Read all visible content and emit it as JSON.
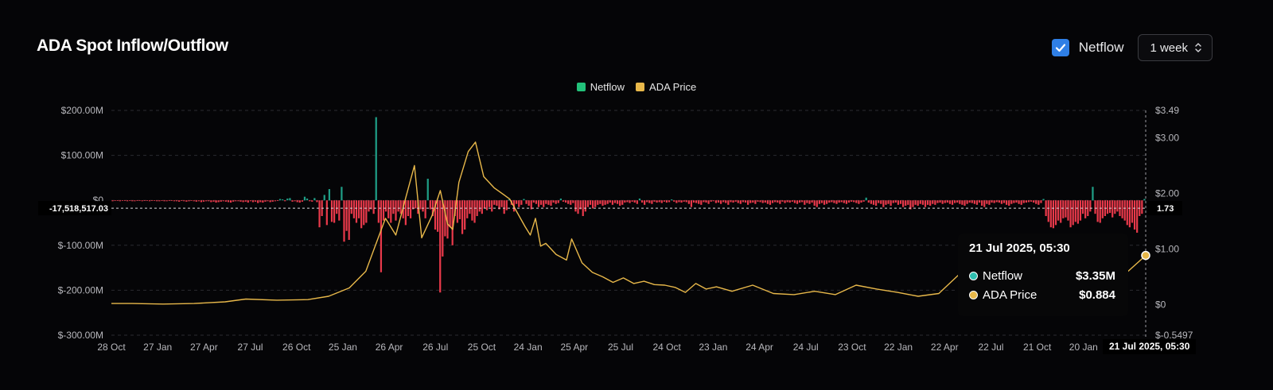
{
  "header": {
    "title": "ADA Spot Inflow/Outflow",
    "netflow_toggle_label": "Netflow",
    "netflow_checked": true,
    "period_select_value": "1 week"
  },
  "legend": [
    {
      "label": "Netflow",
      "color": "#22c27a"
    },
    {
      "label": "ADA Price",
      "color": "#e8b84a"
    }
  ],
  "tooltip": {
    "date": "21 Jul 2025, 05:30",
    "rows": [
      {
        "name": "Netflow",
        "value": "$3.35M",
        "dot_color": "#2fbfb0"
      },
      {
        "name": "ADA Price",
        "value": "$0.884",
        "dot_color": "#e8b84a"
      }
    ]
  },
  "cursor": {
    "y_left_label": "-17,518,517.03",
    "y_right_label": "1.73",
    "x_label": "21 Jul 2025, 05:30"
  },
  "colors": {
    "positive": "#1f9e86",
    "negative": "#e8394a",
    "price": "#e8b84a",
    "grid": "#2a2b30",
    "axis_text": "#b8b8bd"
  },
  "chart_data": {
    "type": "bar",
    "title": "ADA Spot Inflow/Outflow",
    "left_axis": {
      "ticks": [
        "$200.00M",
        "$100.00M",
        "$0",
        "$-100.00M",
        "$-200.00M",
        "$-300.00M"
      ],
      "tick_values": [
        200,
        100,
        0,
        -100,
        -200,
        -300
      ],
      "ylim": [
        -300,
        200
      ],
      "unit": "M USD"
    },
    "right_axis": {
      "ticks": [
        "$3.49",
        "$3.00",
        "$2.00",
        "$1.00",
        "$0",
        "$-0.5497"
      ],
      "tick_values": [
        3.49,
        3.0,
        2.0,
        1.0,
        0,
        -0.5497
      ],
      "ylim": [
        -0.5497,
        3.49
      ]
    },
    "x_ticks": [
      "28 Oct",
      "27 Jan",
      "27 Apr",
      "27 Jul",
      "26 Oct",
      "25 Jan",
      "26 Apr",
      "26 Jul",
      "25 Oct",
      "24 Jan",
      "25 Apr",
      "25 Jul",
      "24 Oct",
      "23 Jan",
      "24 Apr",
      "24 Jul",
      "23 Oct",
      "22 Jan",
      "22 Apr",
      "22 Jul",
      "21 Oct",
      "20 Jan",
      "21"
    ],
    "grid": true,
    "series": [
      {
        "name": "Netflow",
        "type": "bar",
        "unit": "M USD",
        "values": [
          -2,
          -1,
          -1,
          -2,
          -1,
          -1,
          -2,
          -1,
          -2,
          -2,
          -1,
          -1,
          -2,
          -1,
          -1,
          -2,
          -1,
          -1,
          -2,
          -2,
          -1,
          -2,
          -2,
          -1,
          -1,
          -2,
          -2,
          -3,
          -1,
          -2,
          -3,
          -2,
          -1,
          -2,
          -3,
          -2,
          -4,
          -3,
          -2,
          -2,
          -4,
          -3,
          -5,
          -4,
          -3,
          -2,
          -3,
          -4,
          -5,
          -3,
          -2,
          -2,
          -3,
          -4,
          -3,
          -5,
          -2,
          -4,
          -3,
          -6,
          -4,
          -5,
          -3,
          -2,
          -4,
          -3,
          -2,
          -1,
          3,
          2,
          -2,
          4,
          5,
          -3,
          -2,
          -4,
          -5,
          -3,
          8,
          4,
          -2,
          -3,
          5,
          -4,
          -60,
          -35,
          12,
          -55,
          25,
          -48,
          -50,
          -30,
          -45,
          30,
          -92,
          -68,
          -88,
          -30,
          -40,
          -50,
          -40,
          -62,
          -55,
          -50,
          -25,
          -20,
          -30,
          185,
          -50,
          -160,
          -45,
          -25,
          -40,
          -50,
          -30,
          -45,
          -25,
          -30,
          -40,
          -55,
          -35,
          -40,
          -20,
          -18,
          -30,
          -20,
          -25,
          -40,
          48,
          -20,
          -35,
          -65,
          -70,
          -205,
          -125,
          -80,
          -85,
          -60,
          -100,
          -35,
          -50,
          -42,
          -75,
          -65,
          -40,
          -30,
          -45,
          -50,
          -35,
          -25,
          -30,
          -18,
          -22,
          -15,
          -25,
          -10,
          -12,
          -20,
          -15,
          -30,
          -22,
          2,
          -10,
          -25,
          -8,
          -15,
          -10,
          3,
          -8,
          -12,
          -20,
          -5,
          -8,
          -15,
          -10,
          -15,
          -8,
          -10,
          -12,
          -5,
          -8,
          -6,
          4,
          -3,
          -5,
          -8,
          -10,
          -6,
          -25,
          -30,
          -20,
          -35,
          -25,
          -15,
          -10,
          -18,
          -15,
          -10,
          -8,
          -12,
          -10,
          -8,
          -5,
          -10,
          -6,
          -8,
          -12,
          -10,
          -5,
          -4,
          -6,
          -3,
          -5,
          -8,
          4,
          -5,
          -10,
          -4,
          -6,
          -8,
          -3,
          -5,
          -4,
          -6,
          -3,
          -5,
          -4,
          2,
          -3,
          -6,
          -4,
          -5,
          -3,
          -4,
          -8,
          -15,
          -5,
          -6,
          -8,
          -10,
          -4,
          -5,
          -8,
          -3,
          -2,
          -6,
          -5,
          -8,
          -4,
          -6,
          -10,
          -4,
          -5,
          -3,
          -6,
          -8,
          -4,
          -5,
          -10,
          -6,
          -5,
          -8,
          -3,
          -4,
          -6,
          -5,
          -8,
          -10,
          -6,
          -4,
          -5,
          -8,
          -3,
          -6,
          -4,
          -5,
          -3,
          -6,
          -8,
          -5,
          -4,
          -10,
          -6,
          -8,
          -5,
          -12,
          -15,
          -8,
          -6,
          -10,
          -8,
          -5,
          -4,
          -6,
          -8,
          -5,
          -4,
          -6,
          -8,
          -5,
          -3,
          -4,
          -6,
          -8,
          -5,
          -3,
          6,
          -5,
          -8,
          -10,
          -12,
          -6,
          -8,
          -15,
          -10,
          -8,
          -12,
          -6,
          -5,
          -10,
          -8,
          -15,
          -12,
          -10,
          -20,
          -15,
          -10,
          -12,
          -8,
          -10,
          -15,
          -10,
          -12,
          -8,
          -10,
          -6,
          -5,
          -8,
          -6,
          -5,
          -8,
          -10,
          -6,
          -5,
          -8,
          -10,
          -12,
          -8,
          -5,
          -6,
          -8,
          -10,
          -5,
          -12,
          -15,
          -8,
          -10,
          -5,
          -6,
          -4,
          -5,
          -8,
          -6,
          -10,
          -12,
          -8,
          -6,
          -5,
          -8,
          -10,
          -6,
          -5,
          -4,
          -3,
          -5,
          -8,
          -10,
          -6,
          3,
          -35,
          -48,
          -60,
          -62,
          -55,
          -45,
          -50,
          -40,
          -38,
          -45,
          -60,
          -55,
          -48,
          -52,
          -45,
          -30,
          -40,
          -35,
          -25,
          30,
          -30,
          -48,
          -50,
          -40,
          -35,
          -30,
          -28,
          -38,
          -30,
          -25,
          -35,
          -40,
          -45,
          -55,
          -60,
          -50,
          -65,
          -72,
          -35,
          -30,
          3
        ],
        "color_positive": "#1f9e86",
        "color_negative": "#e8394a"
      },
      {
        "name": "ADA Price",
        "type": "line",
        "unit": "USD",
        "x": [
          0,
          0.02,
          0.05,
          0.08,
          0.11,
          0.13,
          0.16,
          0.19,
          0.21,
          0.23,
          0.246,
          0.255,
          0.265,
          0.275,
          0.285,
          0.293,
          0.3,
          0.31,
          0.318,
          0.325,
          0.33,
          0.336,
          0.345,
          0.352,
          0.36,
          0.37,
          0.385,
          0.4,
          0.405,
          0.41,
          0.415,
          0.42,
          0.43,
          0.44,
          0.445,
          0.455,
          0.465,
          0.475,
          0.485,
          0.495,
          0.505,
          0.515,
          0.525,
          0.535,
          0.545,
          0.555,
          0.565,
          0.575,
          0.585,
          0.6,
          0.62,
          0.64,
          0.66,
          0.68,
          0.7,
          0.72,
          0.74,
          0.76,
          0.78,
          0.8,
          0.82,
          0.84,
          0.85,
          0.86,
          0.87,
          0.88,
          0.89,
          0.9,
          0.91,
          0.915,
          0.92,
          0.93,
          0.935,
          0.94,
          0.95,
          0.96,
          0.97,
          0.98,
          1.0
        ],
        "values": [
          0.02,
          0.02,
          0.01,
          0.02,
          0.05,
          0.1,
          0.08,
          0.09,
          0.15,
          0.3,
          0.6,
          1.05,
          1.55,
          1.25,
          1.95,
          2.5,
          1.2,
          1.6,
          2.05,
          1.45,
          1.35,
          2.2,
          2.75,
          2.92,
          2.3,
          2.1,
          1.9,
          1.4,
          1.25,
          1.55,
          1.05,
          1.1,
          0.9,
          0.8,
          1.18,
          0.75,
          0.58,
          0.5,
          0.4,
          0.48,
          0.38,
          0.42,
          0.36,
          0.35,
          0.31,
          0.22,
          0.38,
          0.28,
          0.32,
          0.24,
          0.35,
          0.2,
          0.18,
          0.24,
          0.18,
          0.35,
          0.28,
          0.22,
          0.15,
          0.2,
          0.55,
          0.48,
          0.52,
          0.52,
          0.45,
          0.72,
          0.6,
          0.4,
          0.45,
          0.32,
          0.35,
          0.3,
          0.28,
          0.3,
          0.35,
          0.3,
          0.4,
          0.55,
          0.884
        ],
        "color": "#e8b84a"
      }
    ]
  }
}
